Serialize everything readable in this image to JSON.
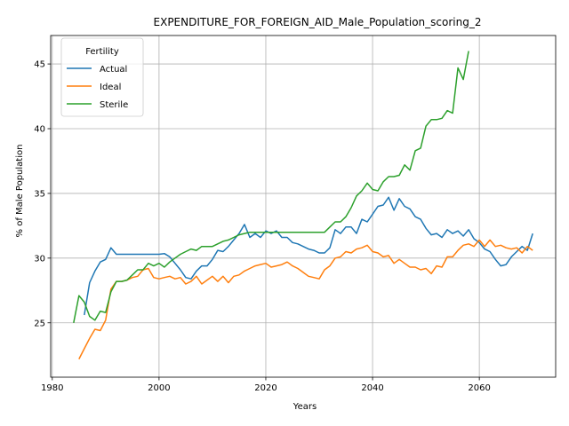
{
  "chart_data": {
    "type": "line",
    "title": "EXPENDITURE_FOR_FOREIGN_AID_Male_Population_scoring_2",
    "xlabel": "Years",
    "ylabel": "% of Male Population",
    "xlim": [
      1979.7,
      2074.3
    ],
    "ylim": [
      20.8,
      47.2
    ],
    "xticks": [
      1980,
      2000,
      2020,
      2040,
      2060
    ],
    "yticks": [
      25,
      30,
      35,
      40,
      45
    ],
    "grid": true,
    "legend": {
      "title": "Fertility",
      "placement": "top-left"
    },
    "series": [
      {
        "name": "Actual",
        "color": "#1f77b4",
        "x": [
          1986,
          1987,
          1988,
          1989,
          1990,
          1991,
          1992,
          1993,
          1994,
          1995,
          1996,
          1997,
          1998,
          1999,
          2000,
          2001,
          2002,
          2003,
          2004,
          2005,
          2006,
          2007,
          2008,
          2009,
          2010,
          2011,
          2012,
          2013,
          2014,
          2015,
          2016,
          2017,
          2018,
          2019,
          2020,
          2021,
          2022,
          2023,
          2024,
          2025,
          2026,
          2027,
          2028,
          2029,
          2030,
          2031,
          2032,
          2033,
          2034,
          2035,
          2036,
          2037,
          2038,
          2039,
          2040,
          2041,
          2042,
          2043,
          2044,
          2045,
          2046,
          2047,
          2048,
          2049,
          2050,
          2051,
          2052,
          2053,
          2054,
          2055,
          2056,
          2057,
          2058,
          2059,
          2060,
          2061,
          2062,
          2063,
          2064,
          2065,
          2066,
          2067,
          2068,
          2069,
          2070
        ],
        "y": [
          25.6,
          28.1,
          29.0,
          29.7,
          29.9,
          30.8,
          30.3,
          30.3,
          30.3,
          30.3,
          30.3,
          30.3,
          30.3,
          30.3,
          30.3,
          30.35,
          30.1,
          29.6,
          29.1,
          28.5,
          28.4,
          29.0,
          29.4,
          29.4,
          29.9,
          30.6,
          30.5,
          30.9,
          31.4,
          31.9,
          32.6,
          31.6,
          31.9,
          31.6,
          32.1,
          31.9,
          32.1,
          31.6,
          31.6,
          31.2,
          31.1,
          30.9,
          30.7,
          30.6,
          30.4,
          30.4,
          30.8,
          32.2,
          31.9,
          32.4,
          32.4,
          31.9,
          33.0,
          32.8,
          33.4,
          34.0,
          34.1,
          34.7,
          33.7,
          34.6,
          34.0,
          33.8,
          33.2,
          33.0,
          32.3,
          31.8,
          31.9,
          31.6,
          32.2,
          31.9,
          32.1,
          31.7,
          32.2,
          31.5,
          31.2,
          30.7,
          30.5,
          29.9,
          29.4,
          29.5,
          30.1,
          30.5,
          30.9,
          30.6,
          31.9
        ]
      },
      {
        "name": "Ideal",
        "color": "#ff7f0e",
        "x": [
          1985,
          1986,
          1987,
          1988,
          1989,
          1990,
          1991,
          1992,
          1993,
          1994,
          1995,
          1996,
          1997,
          1998,
          1999,
          2000,
          2001,
          2002,
          2003,
          2004,
          2005,
          2006,
          2007,
          2008,
          2009,
          2010,
          2011,
          2012,
          2013,
          2014,
          2015,
          2016,
          2017,
          2018,
          2019,
          2020,
          2021,
          2022,
          2023,
          2024,
          2025,
          2026,
          2027,
          2028,
          2029,
          2030,
          2031,
          2032,
          2033,
          2034,
          2035,
          2036,
          2037,
          2038,
          2039,
          2040,
          2041,
          2042,
          2043,
          2044,
          2045,
          2046,
          2047,
          2048,
          2049,
          2050,
          2051,
          2052,
          2053,
          2054,
          2055,
          2056,
          2057,
          2058,
          2059,
          2060,
          2061,
          2062,
          2063,
          2064,
          2065,
          2066,
          2067,
          2068,
          2069,
          2070
        ],
        "y": [
          22.2,
          23.0,
          23.8,
          24.5,
          24.4,
          25.2,
          27.6,
          28.2,
          28.2,
          28.3,
          28.5,
          28.6,
          29.1,
          29.2,
          28.5,
          28.4,
          28.5,
          28.6,
          28.4,
          28.5,
          28.0,
          28.2,
          28.6,
          28.0,
          28.3,
          28.6,
          28.2,
          28.6,
          28.1,
          28.6,
          28.7,
          29.0,
          29.2,
          29.4,
          29.5,
          29.6,
          29.3,
          29.4,
          29.5,
          29.7,
          29.4,
          29.2,
          28.9,
          28.6,
          28.5,
          28.4,
          29.1,
          29.4,
          30.0,
          30.1,
          30.5,
          30.4,
          30.7,
          30.8,
          31.0,
          30.5,
          30.4,
          30.1,
          30.2,
          29.6,
          29.9,
          29.6,
          29.3,
          29.3,
          29.1,
          29.2,
          28.8,
          29.4,
          29.3,
          30.1,
          30.1,
          30.6,
          31.0,
          31.1,
          30.9,
          31.4,
          30.9,
          31.4,
          30.9,
          31.0,
          30.8,
          30.7,
          30.8,
          30.4,
          30.9,
          30.6
        ]
      },
      {
        "name": "Sterile",
        "color": "#2ca02c",
        "x": [
          1984,
          1985,
          1986,
          1987,
          1988,
          1989,
          1990,
          1991,
          1992,
          1993,
          1994,
          1995,
          1996,
          1997,
          1998,
          1999,
          2000,
          2001,
          2002,
          2003,
          2004,
          2005,
          2006,
          2007,
          2008,
          2009,
          2010,
          2011,
          2012,
          2013,
          2014,
          2015,
          2016,
          2017,
          2018,
          2019,
          2020,
          2021,
          2022,
          2023,
          2024,
          2025,
          2026,
          2027,
          2028,
          2029,
          2030,
          2031,
          2032,
          2033,
          2034,
          2035,
          2036,
          2037,
          2038,
          2039,
          2040,
          2041,
          2042,
          2043,
          2044,
          2045,
          2046,
          2047,
          2048,
          2049,
          2050,
          2051,
          2052,
          2053,
          2054,
          2055,
          2056,
          2057,
          2058
        ],
        "y": [
          25.0,
          27.1,
          26.6,
          25.5,
          25.2,
          25.9,
          25.8,
          27.4,
          28.2,
          28.2,
          28.3,
          28.7,
          29.1,
          29.1,
          29.6,
          29.4,
          29.6,
          29.3,
          29.7,
          30.0,
          30.3,
          30.5,
          30.7,
          30.6,
          30.9,
          30.9,
          30.9,
          31.1,
          31.3,
          31.4,
          31.6,
          31.8,
          31.9,
          32.0,
          32.0,
          32.0,
          32.0,
          32.0,
          32.0,
          32.0,
          32.0,
          32.0,
          32.0,
          32.0,
          32.0,
          32.0,
          32.0,
          32.0,
          32.4,
          32.8,
          32.8,
          33.2,
          33.9,
          34.8,
          35.2,
          35.8,
          35.3,
          35.2,
          35.9,
          36.3,
          36.3,
          36.4,
          37.2,
          36.8,
          38.3,
          38.5,
          40.2,
          40.7,
          40.7,
          40.8,
          41.4,
          41.2,
          44.7,
          43.8,
          46.0
        ]
      }
    ]
  }
}
